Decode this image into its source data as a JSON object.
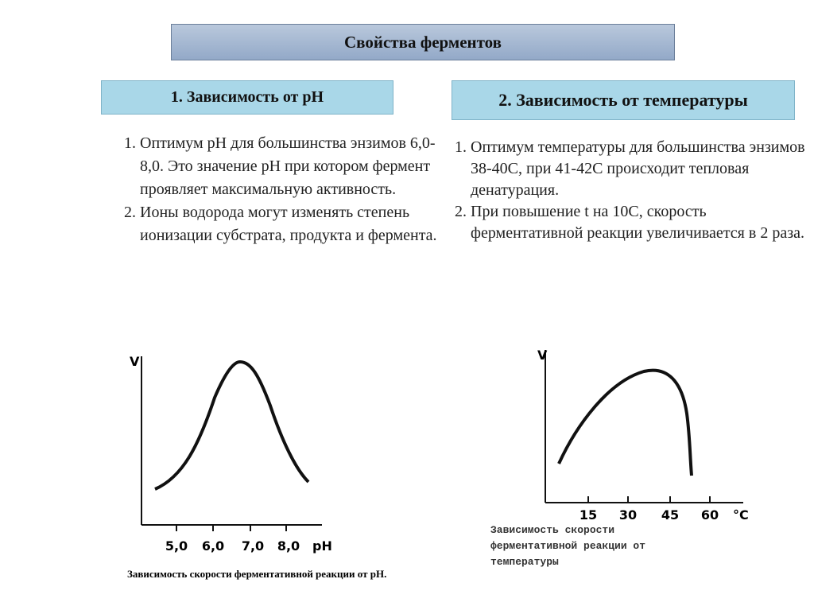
{
  "title": "Свойства ферментов",
  "sections": [
    {
      "heading": "1. Зависимость от pH",
      "items": [
        "Оптимум pH для большинства энзимов  6,0-8,0.  Это значение pH при котором фермент проявляет максимальную активность.",
        "Ионы водорода могут изменять степень ионизации субстрата, продукта и фермента."
      ],
      "figure": {
        "y_label": "V",
        "x_ticks": [
          "5,0",
          "6,0",
          "7,0",
          "8,0"
        ],
        "x_unit": "pH",
        "caption": [
          "Зависимость скорости ферментативной реакции от pH."
        ]
      }
    },
    {
      "heading": "2. Зависимость от температуры",
      "items": [
        "Оптимум температуры для большинства энзимов  38-40С, при 41-42С происходит тепловая денатурация.",
        "При повышение t на 10С, скорость ферментативной реакции увеличивается в 2 раза."
      ],
      "figure": {
        "y_label": "V",
        "x_ticks": [
          "15",
          "30",
          "45",
          "60"
        ],
        "x_unit": "°C",
        "caption": [
          "Зависимость скорости",
          "ферментативной реакции от",
          "температуры"
        ]
      }
    }
  ]
}
